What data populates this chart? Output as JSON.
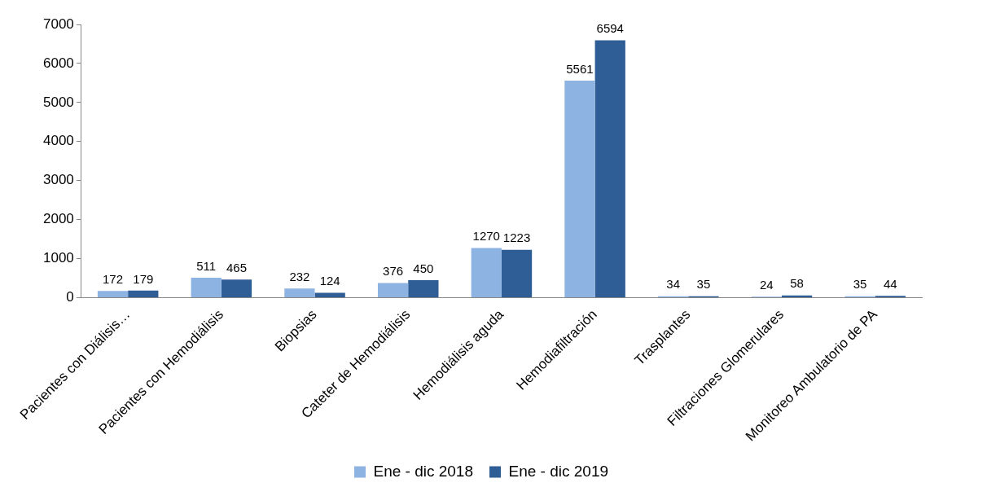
{
  "chart_data": {
    "type": "bar",
    "categories": [
      "Pacientes con Diálisis…",
      "Pacientes con Hemodiálisis",
      "Biopsias",
      "Cateter de Hemodiálisis",
      "Hemodiálisis aguda",
      "Hemodiafiltración",
      "Trasplantes",
      "Filtraciones Glomerulares",
      "Monitoreo Ambulatorio de PA"
    ],
    "series": [
      {
        "name": "Ene - dic 2018",
        "color": "#8db3e2",
        "values": [
          172,
          511,
          232,
          376,
          1270,
          5561,
          34,
          24,
          35
        ]
      },
      {
        "name": "Ene - dic 2019",
        "color": "#2f5d96",
        "values": [
          179,
          465,
          124,
          450,
          1223,
          6594,
          35,
          58,
          44
        ]
      }
    ],
    "ylim": [
      0,
      7000
    ],
    "yticks": [
      0,
      1000,
      2000,
      3000,
      4000,
      5000,
      6000,
      7000
    ],
    "grid": false,
    "legend": "bottom",
    "data_labels": true
  }
}
